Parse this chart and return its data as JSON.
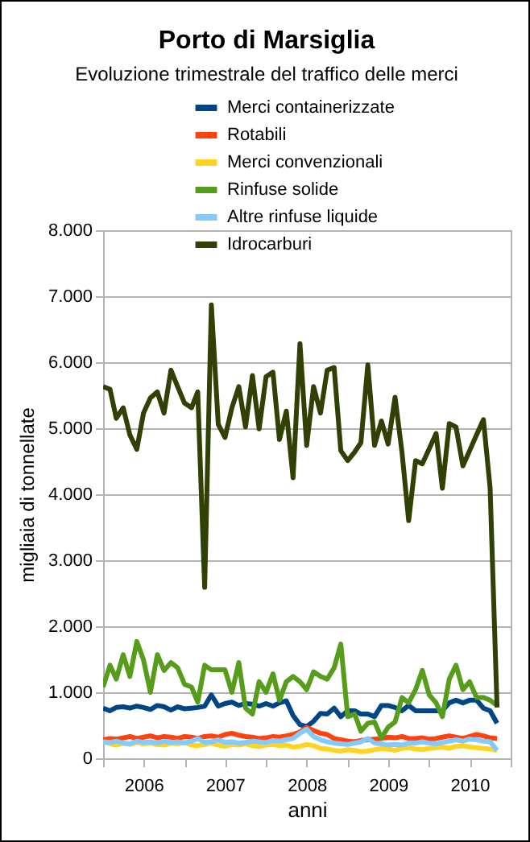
{
  "chart_data": {
    "type": "line",
    "title": "Porto di Marsiglia",
    "subtitle": "Evoluzione trimestrale del traffico delle merci",
    "xlabel": "anni",
    "ylabel": "migliaia di tonnellate",
    "x": [
      "2006-01",
      "2006-02",
      "2006-03",
      "2006-04",
      "2006-05",
      "2006-06",
      "2006-07",
      "2006-08",
      "2006-09",
      "2006-10",
      "2006-11",
      "2006-12",
      "2007-01",
      "2007-02",
      "2007-03",
      "2007-04",
      "2007-05",
      "2007-06",
      "2007-07",
      "2007-08",
      "2007-09",
      "2007-10",
      "2007-11",
      "2007-12",
      "2008-01",
      "2008-02",
      "2008-03",
      "2008-04",
      "2008-05",
      "2008-06",
      "2008-07",
      "2008-08",
      "2008-09",
      "2008-10",
      "2008-11",
      "2008-12",
      "2009-01",
      "2009-02",
      "2009-03",
      "2009-04",
      "2009-05",
      "2009-06",
      "2009-07",
      "2009-08",
      "2009-09",
      "2009-10",
      "2009-11",
      "2009-12",
      "2010-01",
      "2010-02",
      "2010-03",
      "2010-04",
      "2010-05",
      "2010-06",
      "2010-07",
      "2010-08",
      "2010-09",
      "2010-10",
      "2010-11"
    ],
    "series": [
      {
        "name": "Merci containerizzate",
        "color": "#004586",
        "values": [
          760,
          720,
          770,
          780,
          760,
          790,
          770,
          740,
          800,
          780,
          730,
          780,
          750,
          760,
          770,
          790,
          960,
          790,
          830,
          850,
          800,
          830,
          820,
          790,
          830,
          790,
          840,
          870,
          650,
          510,
          480,
          560,
          680,
          670,
          760,
          630,
          720,
          720,
          670,
          670,
          630,
          800,
          800,
          770,
          720,
          800,
          720,
          720,
          720,
          720,
          720,
          840,
          880,
          840,
          880,
          880,
          760,
          720,
          530
        ]
      },
      {
        "name": "Rotabili",
        "color": "#ff420e",
        "values": [
          280,
          300,
          290,
          310,
          330,
          300,
          320,
          340,
          310,
          330,
          320,
          300,
          330,
          320,
          300,
          330,
          340,
          320,
          360,
          380,
          350,
          330,
          320,
          300,
          310,
          330,
          320,
          340,
          360,
          400,
          470,
          420,
          380,
          360,
          300,
          280,
          260,
          250,
          270,
          280,
          290,
          300,
          320,
          310,
          330,
          300,
          300,
          310,
          290,
          300,
          320,
          340,
          320,
          300,
          330,
          360,
          340,
          310,
          300
        ]
      },
      {
        "name": "Merci convenzionali",
        "color": "#ffd320",
        "values": [
          250,
          220,
          200,
          230,
          210,
          240,
          220,
          230,
          210,
          200,
          230,
          220,
          240,
          200,
          190,
          210,
          230,
          200,
          180,
          210,
          200,
          220,
          190,
          180,
          200,
          210,
          190,
          200,
          170,
          180,
          210,
          190,
          150,
          140,
          120,
          110,
          130,
          120,
          100,
          110,
          130,
          150,
          140,
          120,
          150,
          160,
          140,
          130,
          150,
          160,
          170,
          150,
          180,
          190,
          170,
          160,
          150,
          140,
          120
        ]
      },
      {
        "name": "Rinfuse solide",
        "color": "#579d1c",
        "values": [
          1080,
          1410,
          1200,
          1570,
          1240,
          1770,
          1490,
          1000,
          1570,
          1330,
          1450,
          1370,
          1120,
          1080,
          850,
          1410,
          1340,
          1340,
          1340,
          1000,
          1450,
          760,
          670,
          1160,
          1000,
          1280,
          880,
          1160,
          1240,
          1160,
          1040,
          1310,
          1240,
          1200,
          1370,
          1730,
          630,
          670,
          410,
          530,
          550,
          310,
          470,
          550,
          920,
          840,
          1040,
          1330,
          960,
          840,
          630,
          1200,
          1410,
          1040,
          1160,
          920,
          920,
          880,
          800
        ]
      },
      {
        "name": "Altre rinfuse liquide",
        "color": "#83caff",
        "values": [
          250,
          240,
          260,
          230,
          220,
          260,
          240,
          250,
          230,
          260,
          240,
          250,
          230,
          260,
          300,
          240,
          250,
          280,
          240,
          250,
          230,
          240,
          260,
          250,
          240,
          270,
          260,
          280,
          300,
          380,
          440,
          330,
          280,
          250,
          230,
          220,
          210,
          230,
          250,
          300,
          230,
          220,
          200,
          210,
          200,
          230,
          230,
          250,
          230,
          220,
          240,
          260,
          280,
          260,
          290,
          280,
          260,
          250,
          120
        ]
      },
      {
        "name": "Idrocarburi",
        "color": "#314004",
        "values": [
          5630,
          5590,
          5150,
          5310,
          4900,
          4680,
          5230,
          5460,
          5550,
          5230,
          5880,
          5630,
          5380,
          5310,
          5550,
          2590,
          6870,
          5060,
          4860,
          5310,
          5630,
          5020,
          5800,
          4990,
          5780,
          5850,
          4830,
          5260,
          4250,
          6280,
          4740,
          5630,
          5230,
          5880,
          5920,
          4660,
          4510,
          4640,
          4780,
          5960,
          4740,
          5110,
          4760,
          5470,
          4640,
          3600,
          4510,
          4460,
          4690,
          4920,
          4090,
          5070,
          5020,
          4430,
          4660,
          4900,
          5130,
          4090,
          770
        ]
      }
    ],
    "xlim": [
      "2006-01",
      "2011-01"
    ],
    "xticks": [
      {
        "value": "2006-01",
        "label": null
      },
      {
        "value": "2006-07",
        "label": "2006"
      },
      {
        "value": "2007-01",
        "label": null
      },
      {
        "value": "2007-07",
        "label": "2007"
      },
      {
        "value": "2008-01",
        "label": null
      },
      {
        "value": "2008-07",
        "label": "2008"
      },
      {
        "value": "2009-01",
        "label": null
      },
      {
        "value": "2009-07",
        "label": "2009"
      },
      {
        "value": "2010-01",
        "label": null
      },
      {
        "value": "2010-07",
        "label": "2010"
      },
      {
        "value": "2011-01",
        "label": null
      }
    ],
    "ylim": [
      0,
      8000
    ],
    "yticks": [
      0,
      {
        "value": 1000,
        "label": "1.000"
      },
      {
        "value": 2000,
        "label": "2.000"
      },
      {
        "value": 3000,
        "label": "3.000"
      },
      {
        "value": 4000,
        "label": "4.000"
      },
      {
        "value": 5000,
        "label": "5.000"
      },
      {
        "value": 6000,
        "label": "6.000"
      },
      {
        "value": 7000,
        "label": "7.000"
      },
      {
        "value": 8000,
        "label": "8.000"
      }
    ],
    "grid": "y",
    "legend": "top",
    "marker": "none",
    "line_style": "solid"
  }
}
